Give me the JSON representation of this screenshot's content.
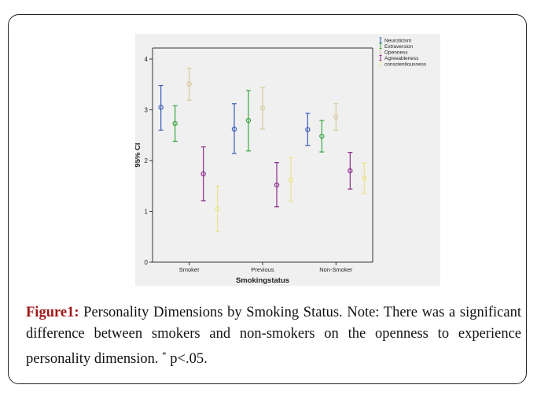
{
  "chart_data": {
    "type": "errorbar",
    "categories": [
      "Smoker",
      "Previous",
      "Non-Smoker"
    ],
    "xlabel": "Smokingstatus",
    "ylabel": "95% CI",
    "ylim": [
      0,
      4
    ],
    "yticks": [
      0,
      1,
      2,
      3,
      4
    ],
    "legend_position": "top-right",
    "series": [
      {
        "name": "Neuroticism",
        "color": "#3a5db8",
        "values": [
          3.05,
          2.62,
          2.61
        ],
        "lower": [
          2.6,
          2.14,
          2.3
        ],
        "upper": [
          3.48,
          3.12,
          2.93
        ]
      },
      {
        "name": "Extraversion",
        "color": "#3aa644",
        "values": [
          2.73,
          2.79,
          2.48
        ],
        "lower": [
          2.38,
          2.19,
          2.17
        ],
        "upper": [
          3.08,
          3.38,
          2.79
        ]
      },
      {
        "name": "Openness",
        "color": "#d8c9a0",
        "values": [
          3.51,
          3.04,
          2.86
        ],
        "lower": [
          3.19,
          2.62,
          2.6
        ],
        "upper": [
          3.82,
          3.44,
          3.12
        ]
      },
      {
        "name": "Agreeableness",
        "color": "#8b2a8b",
        "values": [
          1.74,
          1.52,
          1.8
        ],
        "lower": [
          1.21,
          1.09,
          1.44
        ],
        "upper": [
          2.27,
          1.96,
          2.16
        ]
      },
      {
        "name": "conscientiousness",
        "color": "#ece48c",
        "values": [
          1.05,
          1.62,
          1.65
        ],
        "lower": [
          0.6,
          1.2,
          1.35
        ],
        "upper": [
          1.5,
          2.06,
          1.95
        ]
      }
    ]
  },
  "caption": {
    "label": "Figure1:",
    "text": " Personality Dimensions by Smoking Status. Note: There was a significant difference between smokers and non-smokers on the openness to experience personality dimension. ",
    "sup": "*",
    "tail": " p<.05."
  }
}
